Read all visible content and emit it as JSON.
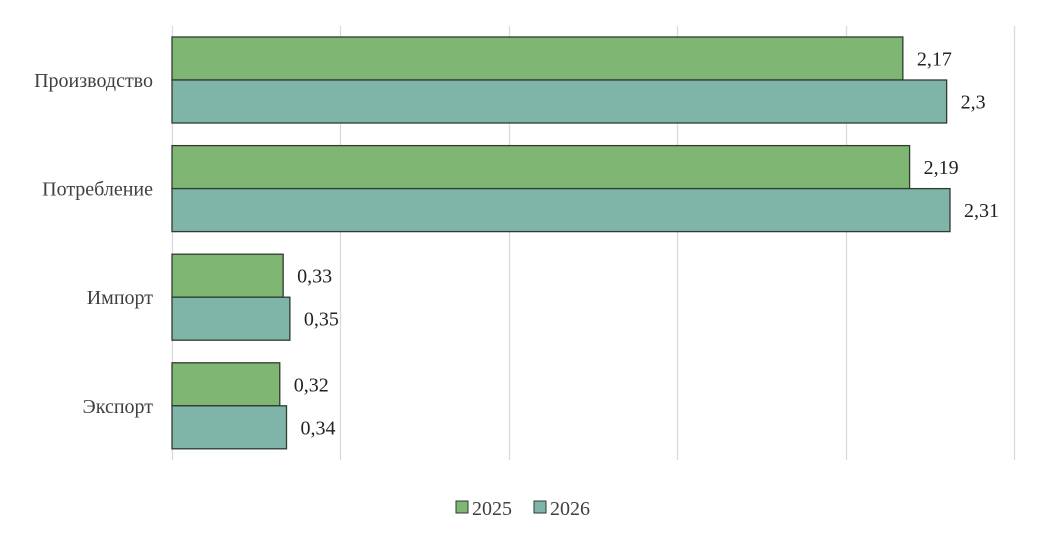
{
  "chart_data": {
    "type": "bar",
    "orientation": "horizontal",
    "categories": [
      "Производство",
      "Потребление",
      "Импорт",
      "Экспорт"
    ],
    "series": [
      {
        "name": "2025",
        "values": [
          2.17,
          2.19,
          0.33,
          0.32
        ],
        "labels": [
          "2,17",
          "2,19",
          "0,33",
          "0,32"
        ],
        "color": "#7fb673"
      },
      {
        "name": "2026",
        "values": [
          2.3,
          2.31,
          0.35,
          0.34
        ],
        "labels": [
          "2,3",
          "2,31",
          "0,35",
          "0,34"
        ],
        "color": "#7fb4a8"
      }
    ],
    "xlim": [
      0,
      2.5
    ],
    "grid": "vertical",
    "legend_position": "bottom",
    "title": "",
    "xlabel": "",
    "ylabel": ""
  }
}
